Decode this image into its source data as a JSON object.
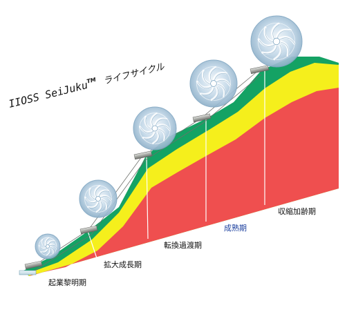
{
  "diagram": {
    "title": {
      "main": "IIOSS  SeiJuku",
      "trademark": "TM",
      "subtitle": "ライフサイクル"
    },
    "stages": [
      {
        "id": "dawn",
        "label": "起業黎明期",
        "color": "#111111"
      },
      {
        "id": "growth",
        "label": "拡大成長期",
        "color": "#111111"
      },
      {
        "id": "transition",
        "label": "転換過渡期",
        "color": "#111111"
      },
      {
        "id": "mature",
        "label": "成熟期",
        "color": "#1b3f9e"
      },
      {
        "id": "contraction",
        "label": "収縮加齢期",
        "color": "#111111"
      }
    ],
    "colors": {
      "red": "#ef4f4f",
      "yellow": "#f5ef1c",
      "green": "#14a264",
      "divider": "#ffffff",
      "wheel": "#bcd4e6",
      "wheel_dark": "#7fa6c2",
      "bar": "#a9aba6"
    }
  }
}
